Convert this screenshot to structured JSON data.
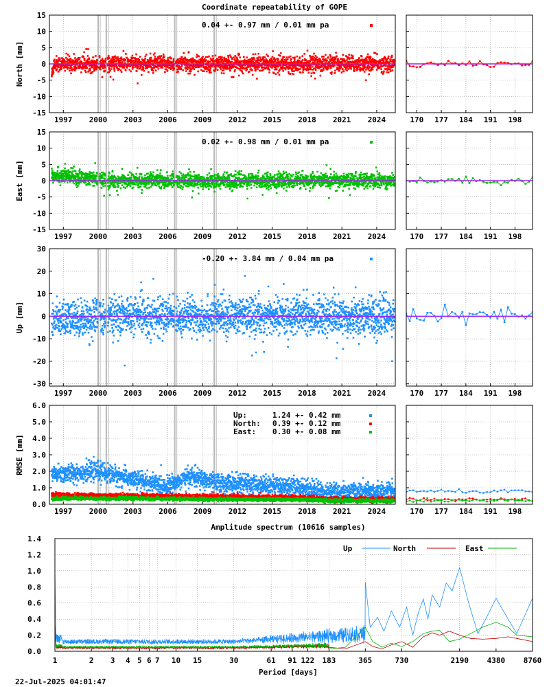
{
  "page": {
    "title": "Coordinate repeatability of GOPE",
    "timestamp": "22-Jul-2025 04:01:47"
  },
  "colors": {
    "north": "#ff0000",
    "east": "#00c000",
    "up": "#1e90ff",
    "trend": "#a020f0",
    "grid": "#a0a0a0",
    "offset_line": "#b8b8b8"
  },
  "chart_data": [
    {
      "id": "north",
      "type": "scatter",
      "ylabel": "North [mm]",
      "ylim": [
        -15,
        15
      ],
      "yticks": [
        15,
        10,
        5,
        0,
        -5,
        -10,
        -15
      ],
      "xlim": [
        1995.8,
        2025.6
      ],
      "xticks": [
        1997,
        2000,
        2003,
        2006,
        2009,
        2012,
        2015,
        2018,
        2021,
        2024
      ],
      "annotation": "0.04 +- 0.97 mm /  0.01 mm pa",
      "legend_color": "#ff0000",
      "noise_sigma": 1.2,
      "early_bias": [
        1996.2,
        -3.5
      ],
      "offset_lines": [
        2000.0,
        2000.7,
        2006.6,
        2010.0
      ],
      "zoom": {
        "xlim": [
          167,
          203
        ],
        "xticks": [
          170,
          177,
          184,
          191,
          198
        ],
        "ylim": [
          -15,
          15
        ]
      }
    },
    {
      "id": "east",
      "type": "scatter",
      "ylabel": "East [mm]",
      "ylim": [
        -15,
        15
      ],
      "yticks": [
        15,
        10,
        5,
        0,
        -5,
        -10,
        -15
      ],
      "xlim": [
        1995.8,
        2025.6
      ],
      "xticks": [
        1997,
        2000,
        2003,
        2006,
        2009,
        2012,
        2015,
        2018,
        2021,
        2024
      ],
      "annotation": "0.02 +- 0.98 mm /  0.01 mm pa",
      "legend_color": "#00c000",
      "noise_sigma": 1.1,
      "early_bias": [
        2001.0,
        1.8
      ],
      "offset_lines": [
        2000.0,
        2000.7,
        2006.6,
        2010.0
      ],
      "zoom": {
        "xlim": [
          167,
          203
        ],
        "xticks": [
          170,
          177,
          184,
          191,
          198
        ],
        "ylim": [
          -15,
          15
        ]
      }
    },
    {
      "id": "up",
      "type": "scatter",
      "ylabel": "Up [mm]",
      "ylim": [
        -31,
        30
      ],
      "yticks": [
        30,
        20,
        10,
        0,
        -10,
        -20,
        -30
      ],
      "xlim": [
        1995.8,
        2025.6
      ],
      "xticks": [
        1997,
        2000,
        2003,
        2006,
        2009,
        2012,
        2015,
        2018,
        2021,
        2024
      ],
      "annotation": "-0.20 +- 3.84 mm /  0.04 mm pa",
      "legend_color": "#1e90ff",
      "noise_sigma": 4.0,
      "early_bias": [
        2000.5,
        -2.0
      ],
      "offset_lines": [
        2000.0,
        2000.7,
        2006.6,
        2010.0
      ],
      "zoom": {
        "xlim": [
          167,
          203
        ],
        "xticks": [
          170,
          177,
          184,
          191,
          198
        ],
        "ylim": [
          -31,
          30
        ]
      }
    },
    {
      "id": "rmse",
      "type": "scatter",
      "ylabel": "RMSE [mm]",
      "ylim": [
        0,
        6
      ],
      "yticks": [
        "6.0",
        "5.0",
        "4.0",
        "3.0",
        "2.0",
        "1.0",
        "0.0"
      ],
      "xlim": [
        1995.8,
        2025.6
      ],
      "xticks": [
        1997,
        2000,
        2003,
        2006,
        2009,
        2012,
        2015,
        2018,
        2021,
        2024
      ],
      "offset_lines": [
        2000.0,
        2000.7,
        2006.6,
        2010.0
      ],
      "legend": [
        {
          "name": "Up:",
          "value": "1.24 +- 0.42 mm",
          "color": "#1e90ff"
        },
        {
          "name": "North:",
          "value": "0.39 +- 0.12 mm",
          "color": "#ff0000"
        },
        {
          "name": "East:",
          "value": "0.30 +- 0.08 mm",
          "color": "#00c000"
        }
      ],
      "series_levels": {
        "up": [
          [
            1996,
            1.8
          ],
          [
            2000,
            2.0
          ],
          [
            2003,
            1.5
          ],
          [
            2006,
            1.1
          ],
          [
            2008,
            1.7
          ],
          [
            2010,
            1.3
          ],
          [
            2014,
            1.2
          ],
          [
            2018,
            1.0
          ],
          [
            2019.5,
            0.75
          ],
          [
            2025.5,
            0.75
          ]
        ],
        "north": [
          [
            1996,
            0.55
          ],
          [
            2003,
            0.5
          ],
          [
            2010,
            0.45
          ],
          [
            2018,
            0.4
          ],
          [
            2020,
            0.3
          ],
          [
            2025.5,
            0.3
          ]
        ],
        "east": [
          [
            1996,
            0.35
          ],
          [
            2003,
            0.35
          ],
          [
            2010,
            0.3
          ],
          [
            2018,
            0.28
          ],
          [
            2020,
            0.22
          ],
          [
            2025.5,
            0.22
          ]
        ]
      },
      "zoom": {
        "xlim": [
          167,
          203
        ],
        "xticks": [
          170,
          177,
          184,
          191,
          198
        ],
        "ylim": [
          0,
          6
        ],
        "up_level": 0.78,
        "north_level": 0.3,
        "east_level": 0.22
      }
    },
    {
      "id": "spectrum",
      "type": "line",
      "title": "Amplitude spectrum (10616 samples)",
      "xlabel": "Period [days]",
      "x_scale": "log",
      "xlim": [
        1,
        8760
      ],
      "xticks": [
        1,
        2,
        3,
        4,
        5,
        6,
        7,
        10,
        15,
        30,
        61,
        91,
        122,
        183,
        365,
        730,
        2190,
        4380,
        8760
      ],
      "ylim": [
        0,
        1.4
      ],
      "yticks": [
        "1.4",
        "1.2",
        "1.0",
        "0.8",
        "0.6",
        "0.4",
        "0.2",
        "0.0"
      ],
      "legend": [
        {
          "name": "Up",
          "color": "#1e90ff"
        },
        {
          "name": "North",
          "color": "#c00000"
        },
        {
          "name": "East",
          "color": "#00b000"
        }
      ],
      "series": [
        {
          "name": "Up",
          "x": [
            365,
            400,
            460,
            520,
            600,
            700,
            800,
            900,
            1000,
            1100,
            1200,
            1300,
            1500,
            1700,
            1900,
            2190,
            2600,
            3100,
            3600,
            4380,
            5500,
            6500,
            8760
          ],
          "y": [
            0.86,
            0.3,
            0.42,
            0.25,
            0.5,
            0.3,
            0.55,
            0.2,
            0.48,
            0.65,
            0.4,
            0.7,
            0.55,
            0.85,
            0.75,
            1.04,
            0.6,
            0.22,
            0.4,
            0.66,
            0.4,
            0.22,
            0.66
          ]
        },
        {
          "name": "North",
          "x": [
            183,
            250,
            365,
            420,
            500,
            600,
            730,
            900,
            1100,
            1300,
            1500,
            1800,
            2190,
            2700,
            3400,
            4380,
            5500,
            6500,
            8760
          ],
          "y": [
            0.05,
            0.03,
            0.12,
            0.06,
            0.03,
            0.08,
            0.12,
            0.05,
            0.18,
            0.23,
            0.2,
            0.25,
            0.2,
            0.16,
            0.15,
            0.16,
            0.18,
            0.16,
            0.12
          ]
        },
        {
          "name": "East",
          "x": [
            183,
            250,
            365,
            420,
            500,
            600,
            730,
            900,
            1100,
            1300,
            1500,
            1800,
            2190,
            2700,
            3400,
            4380,
            5500,
            6500,
            8760
          ],
          "y": [
            0.03,
            0.05,
            0.3,
            0.12,
            0.05,
            0.1,
            0.06,
            0.12,
            0.22,
            0.25,
            0.26,
            0.12,
            0.15,
            0.22,
            0.3,
            0.36,
            0.3,
            0.2,
            0.18
          ]
        }
      ]
    }
  ]
}
